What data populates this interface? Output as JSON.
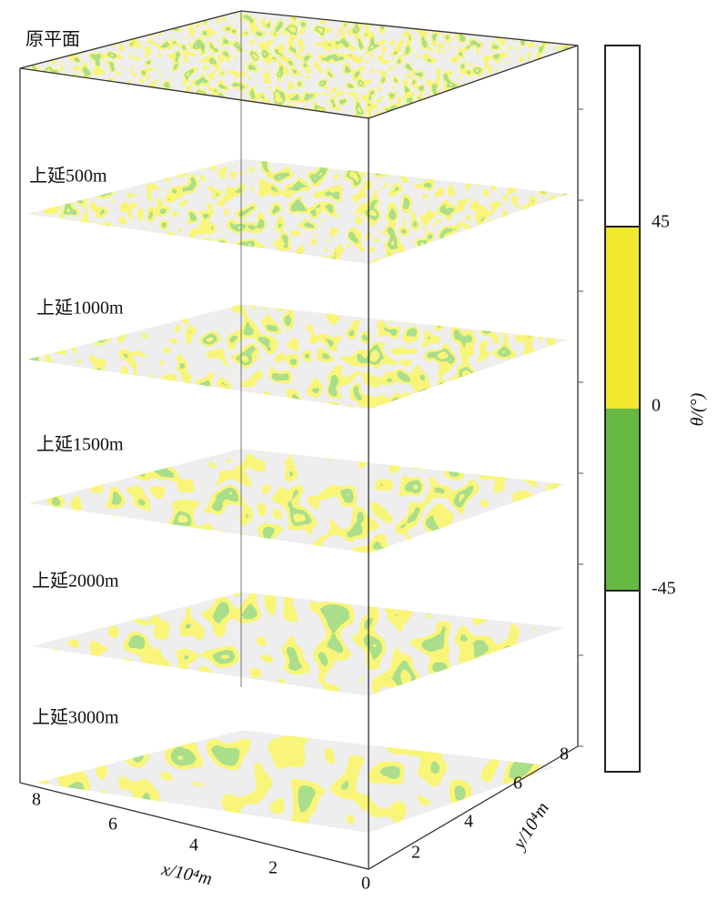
{
  "layers": [
    "原平面",
    "上延500m",
    "上延1000m",
    "上延1500m",
    "上延2000m",
    "上延3000m"
  ],
  "x_axis": {
    "label": "x/10⁴m",
    "ticks": [
      "8",
      "6",
      "4",
      "2",
      "0"
    ]
  },
  "y_axis": {
    "label": "y/10⁴m",
    "ticks": [
      "2",
      "4",
      "6",
      "8"
    ]
  },
  "colorbar": {
    "label": "θ/(°)",
    "ticks": [
      "45",
      "0",
      "-45"
    ]
  }
}
